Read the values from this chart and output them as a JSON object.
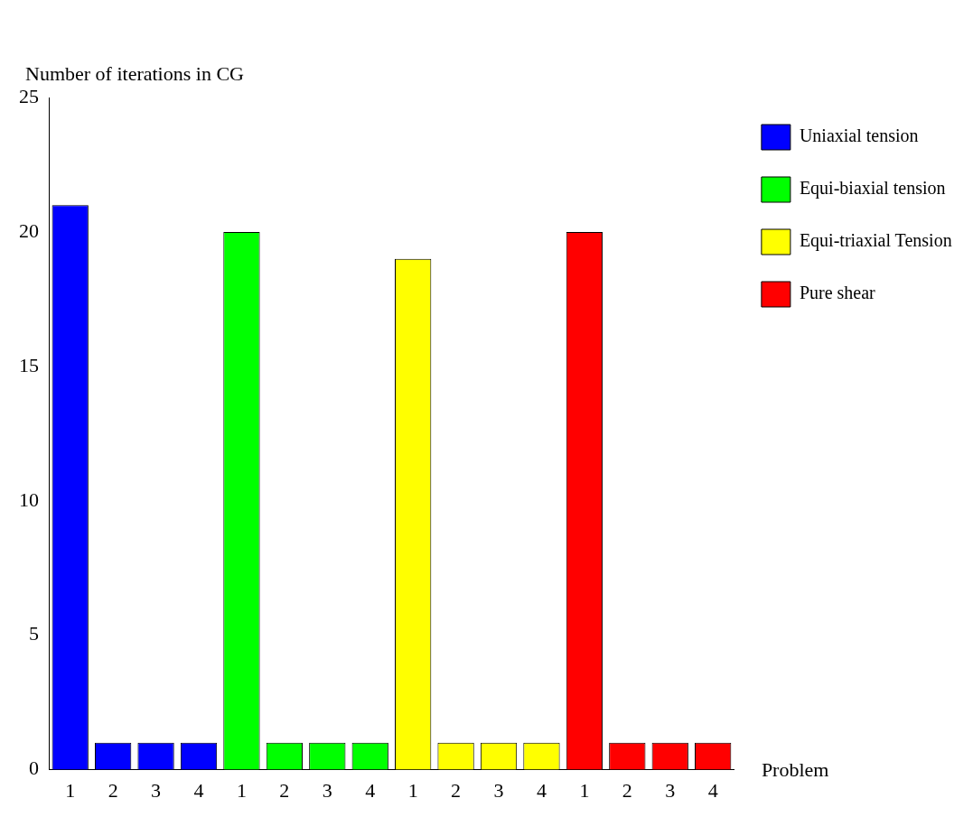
{
  "chart_data": {
    "type": "bar",
    "xlabel": "Problem",
    "ylabel": "Number of iterations in CG",
    "categories": [
      "1",
      "2",
      "3",
      "4",
      "1",
      "2",
      "3",
      "4",
      "1",
      "2",
      "3",
      "4",
      "1",
      "2",
      "3",
      "4"
    ],
    "series": [
      {
        "name": "Uniaxial tension",
        "color": "#0000ff",
        "values": [
          21,
          1,
          1,
          1,
          null,
          null,
          null,
          null,
          null,
          null,
          null,
          null,
          null,
          null,
          null,
          null
        ]
      },
      {
        "name": "Equi-biaxial tension",
        "color": "#00ff00",
        "values": [
          null,
          null,
          null,
          null,
          20,
          1,
          1,
          1,
          null,
          null,
          null,
          null,
          null,
          null,
          null,
          null
        ]
      },
      {
        "name": "Equi-triaxial Tension",
        "color": "#ffff00",
        "values": [
          null,
          null,
          null,
          null,
          null,
          null,
          null,
          null,
          19,
          1,
          1,
          1,
          null,
          null,
          null,
          null
        ]
      },
      {
        "name": "Pure shear",
        "color": "#ff0000",
        "values": [
          null,
          null,
          null,
          null,
          null,
          null,
          null,
          null,
          null,
          null,
          null,
          null,
          20,
          1,
          1,
          1
        ]
      }
    ],
    "ylim": [
      0,
      25
    ],
    "yticks": [
      0,
      5,
      10,
      15,
      20,
      25
    ],
    "grid": false,
    "legend": "top right"
  }
}
